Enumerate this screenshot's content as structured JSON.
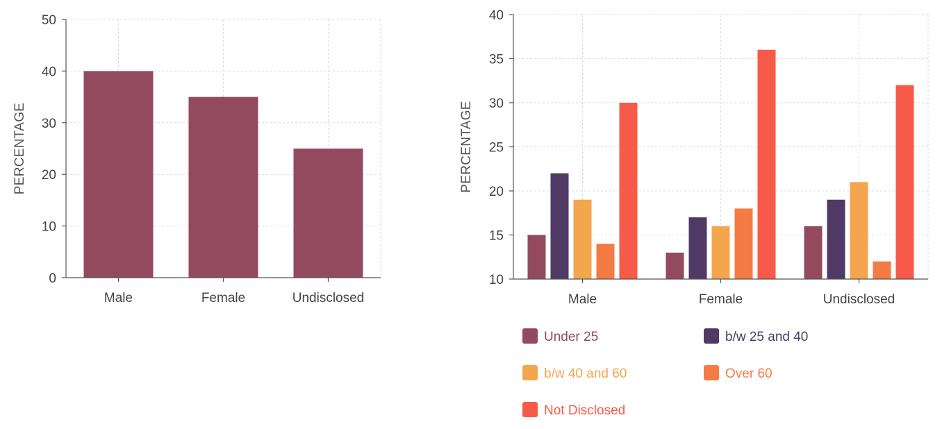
{
  "colors": {
    "under_25": "#944A5E",
    "b_25_40": "#4F3A66",
    "b_40_60": "#F4A64E",
    "over_60": "#F47B43",
    "not_disclosed": "#F75A48",
    "axis": "#555555",
    "grid": "#dadada",
    "tick_text": "#444444"
  },
  "chart_data": [
    {
      "type": "bar",
      "title": "",
      "xlabel": "",
      "ylabel": "PERCENTAGE",
      "categories": [
        "Male",
        "Female",
        "Undisclosed"
      ],
      "values": [
        40,
        35,
        25
      ],
      "ylim": [
        0,
        50
      ],
      "yticks": [
        "0",
        "10",
        "20",
        "30",
        "40",
        "50"
      ],
      "grid": true,
      "series_color_key": "under_25"
    },
    {
      "type": "bar",
      "title": "",
      "xlabel": "",
      "ylabel": "PERCENTAGE",
      "categories": [
        "Male",
        "Female",
        "Undisclosed"
      ],
      "ylim": [
        10,
        40
      ],
      "yticks": [
        "10",
        "15",
        "20",
        "25",
        "30",
        "35",
        "40"
      ],
      "grid": true,
      "legend_position": "bottom",
      "series": [
        {
          "name": "Under 25",
          "color_key": "under_25",
          "values": [
            15,
            13,
            16
          ]
        },
        {
          "name": "b/w 25 and 40",
          "color_key": "b_25_40",
          "values": [
            22,
            17,
            19
          ]
        },
        {
          "name": "b/w 40 and 60",
          "color_key": "b_40_60",
          "values": [
            19,
            16,
            21
          ]
        },
        {
          "name": "Over 60",
          "color_key": "over_60",
          "values": [
            14,
            18,
            12
          ]
        },
        {
          "name": "Not Disclosed",
          "color_key": "not_disclosed",
          "values": [
            30,
            36,
            32
          ]
        }
      ]
    }
  ]
}
